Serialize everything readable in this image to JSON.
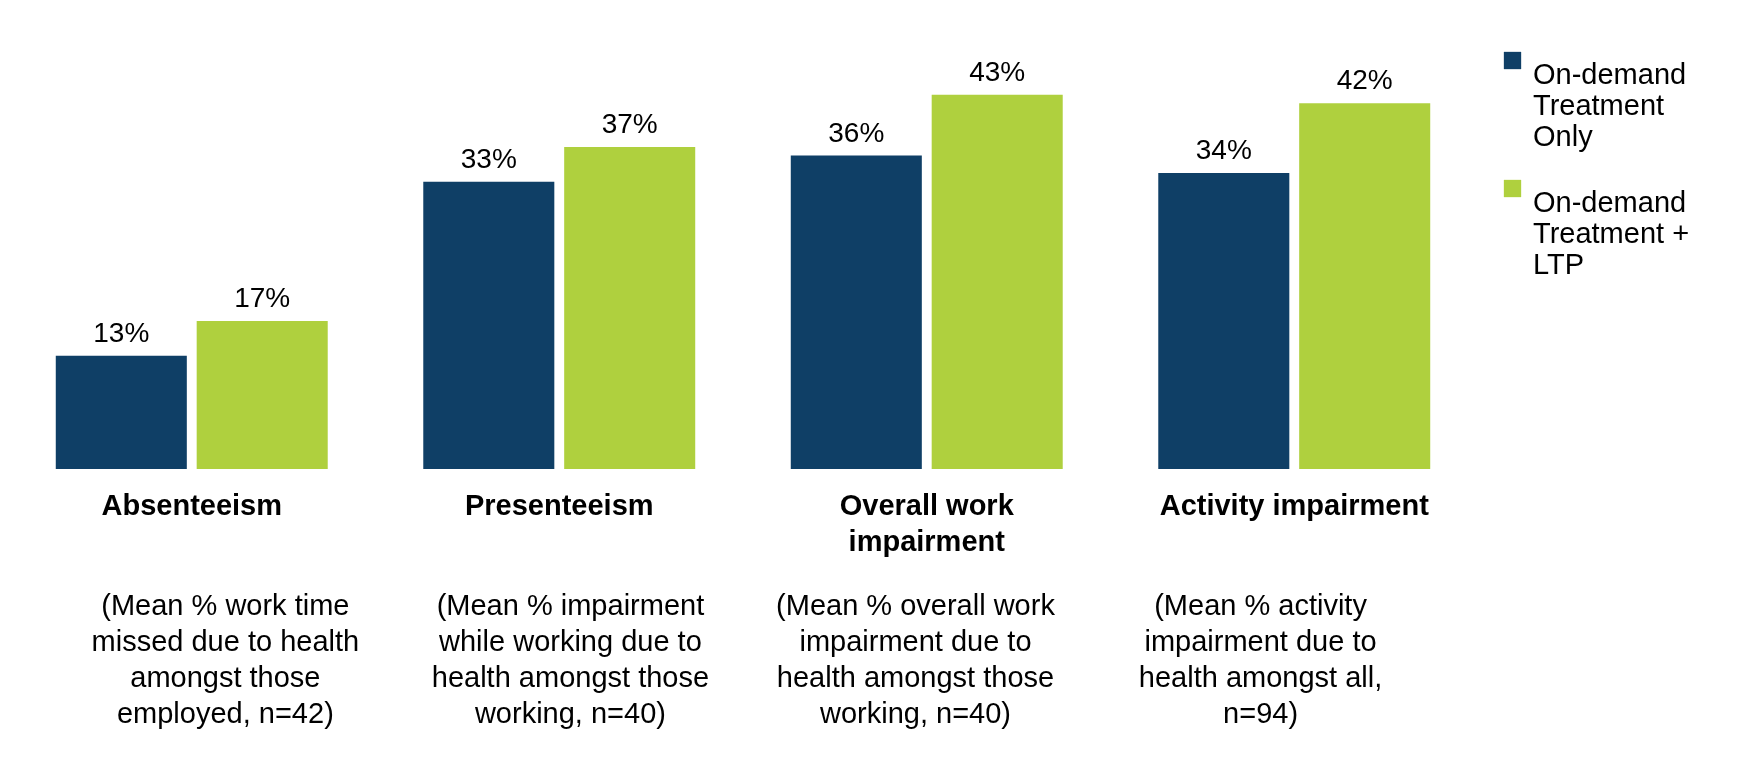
{
  "chart_data": {
    "type": "bar",
    "categories": [
      "Absenteeism",
      "Presenteeism",
      "Overall work impairment",
      "Activity impairment"
    ],
    "series": [
      {
        "name": "On-demand Treatment Only",
        "color": "#0f3f66",
        "values": [
          13,
          33,
          36,
          34
        ],
        "value_labels": [
          "13%",
          "33%",
          "36%",
          "34%"
        ]
      },
      {
        "name": "On-demand Treatment + LTP",
        "color": "#afd03e",
        "values": [
          17,
          37,
          43,
          42
        ],
        "value_labels": [
          "17%",
          "37%",
          "43%",
          "42%"
        ]
      }
    ],
    "legend": "right",
    "annotations": [
      "(Mean % work time missed due to health amongst those employed, n=42)",
      "(Mean % impairment while working due to health amongst those working, n=40)",
      "(Mean % overall work impairment due to health amongst those working, n=40)",
      "(Mean % activity impairment due to health amongst all, n=94)"
    ]
  }
}
